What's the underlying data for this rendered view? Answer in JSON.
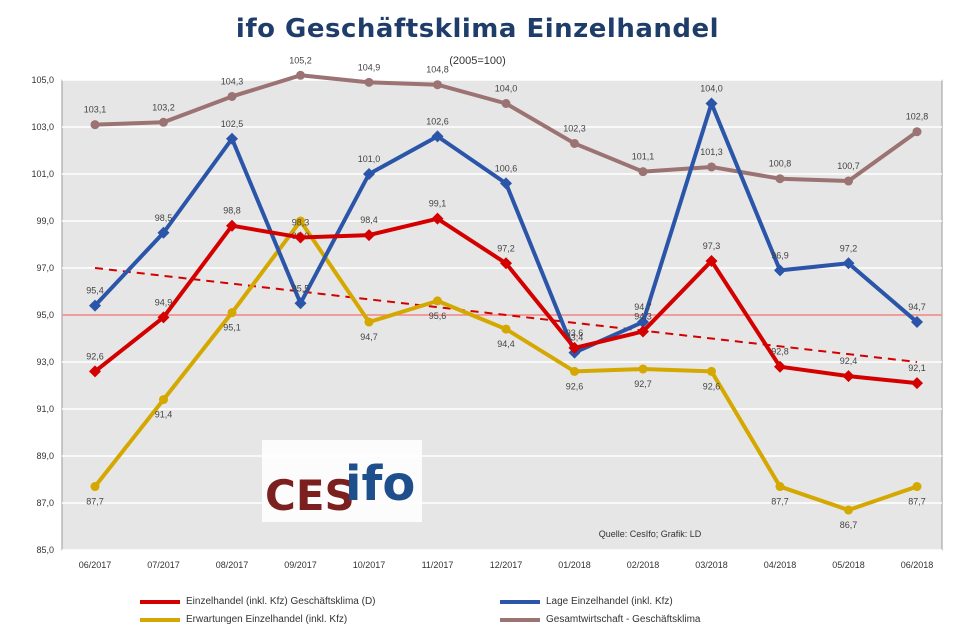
{
  "header": {
    "title": "ifo Geschäftsklima Einzelhandel",
    "subtitle": "(2005=100)"
  },
  "watermark": {
    "logo_text_ces": "CES",
    "logo_text_ifo": "ifo"
  },
  "source_note": "Quelle: CesIfo; Grafik: LD",
  "colors": {
    "plot_bg": "#e6e6e6",
    "grid": "#ffffff",
    "ref_line": "#f08080",
    "einzelhandel": "#d40000",
    "lage": "#2a55a8",
    "erwartungen": "#d4a800",
    "gesamtwirtschaft": "#9b7373",
    "trend": "#d40000"
  },
  "chart_data": {
    "type": "line",
    "title": "ifo Geschäftsklima Einzelhandel",
    "subtitle": "(2005=100)",
    "categories": [
      "06/2017",
      "07/2017",
      "08/2017",
      "09/2017",
      "10/2017",
      "11/2017",
      "12/2017",
      "01/2018",
      "02/2018",
      "03/2018",
      "04/2018",
      "05/2018",
      "06/2018"
    ],
    "ylim": [
      85,
      105
    ],
    "y_ticks": [
      "85,0",
      "87,0",
      "89,0",
      "91,0",
      "93,0",
      "95,0",
      "97,0",
      "99,0",
      "101,0",
      "103,0",
      "105,0"
    ],
    "grid": true,
    "reference_line": 95,
    "legend_position": "bottom",
    "series": [
      {
        "name": "Einzelhandel (inkl. Kfz) Geschäftsklima (D)",
        "color_key": "einzelhandel",
        "values": [
          92.6,
          94.9,
          98.8,
          98.3,
          98.4,
          99.1,
          97.2,
          93.6,
          94.3,
          97.3,
          92.8,
          92.4,
          92.1
        ],
        "labels": [
          "92,6",
          "94,9",
          "98,8",
          "98,3",
          "98,4",
          "99,1",
          "97,2",
          "93,6",
          "94,3",
          "97,3",
          "92,8",
          "92,4",
          "92,1"
        ]
      },
      {
        "name": "Lage Einzelhandel (inkl. Kfz)",
        "color_key": "lage",
        "values": [
          95.4,
          98.5,
          102.5,
          95.5,
          101.0,
          102.6,
          100.6,
          93.4,
          94.7,
          104.0,
          96.9,
          97.2,
          94.7
        ],
        "labels": [
          "95,4",
          "98,5",
          "102,5",
          "95,5",
          "101,0",
          "102,6",
          "100,6",
          "93,4",
          "94,7",
          "104,0",
          "96,9",
          "97,2",
          "94,7"
        ]
      },
      {
        "name": "Erwartungen Einzelhandel (inkl. Kfz)",
        "color_key": "erwartungen",
        "values": [
          87.7,
          91.4,
          95.1,
          99.0,
          94.7,
          95.6,
          94.4,
          92.6,
          92.7,
          92.6,
          87.7,
          86.7,
          87.7
        ],
        "labels": [
          "87,7",
          "91,4",
          "95,1",
          "99,0",
          "94,7",
          "95,6",
          "94,4",
          "92,6",
          "92,7",
          "92,6",
          "87,7",
          "86,7",
          "87,7"
        ]
      },
      {
        "name": "Gesamtwirtschaft - Geschäftsklima",
        "color_key": "gesamtwirtschaft",
        "values": [
          103.1,
          103.2,
          104.3,
          105.2,
          104.9,
          104.8,
          104.0,
          102.3,
          101.1,
          101.3,
          100.8,
          100.7,
          102.8
        ],
        "labels": [
          "103,1",
          "103,2",
          "104,3",
          "105,2",
          "104,9",
          "104,8",
          "104,0",
          "102,3",
          "101,1",
          "101,3",
          "100,8",
          "100,7",
          "102,8"
        ]
      }
    ],
    "trend": {
      "start": 97.0,
      "end": 93.0
    }
  },
  "legend": [
    {
      "label": "Einzelhandel (inkl. Kfz) Geschäftsklima (D)",
      "color_key": "einzelhandel"
    },
    {
      "label": "Lage Einzelhandel (inkl. Kfz)",
      "color_key": "lage"
    },
    {
      "label": "Erwartungen Einzelhandel (inkl. Kfz)",
      "color_key": "erwartungen"
    },
    {
      "label": "Gesamtwirtschaft - Geschäftsklima",
      "color_key": "gesamtwirtschaft"
    }
  ]
}
